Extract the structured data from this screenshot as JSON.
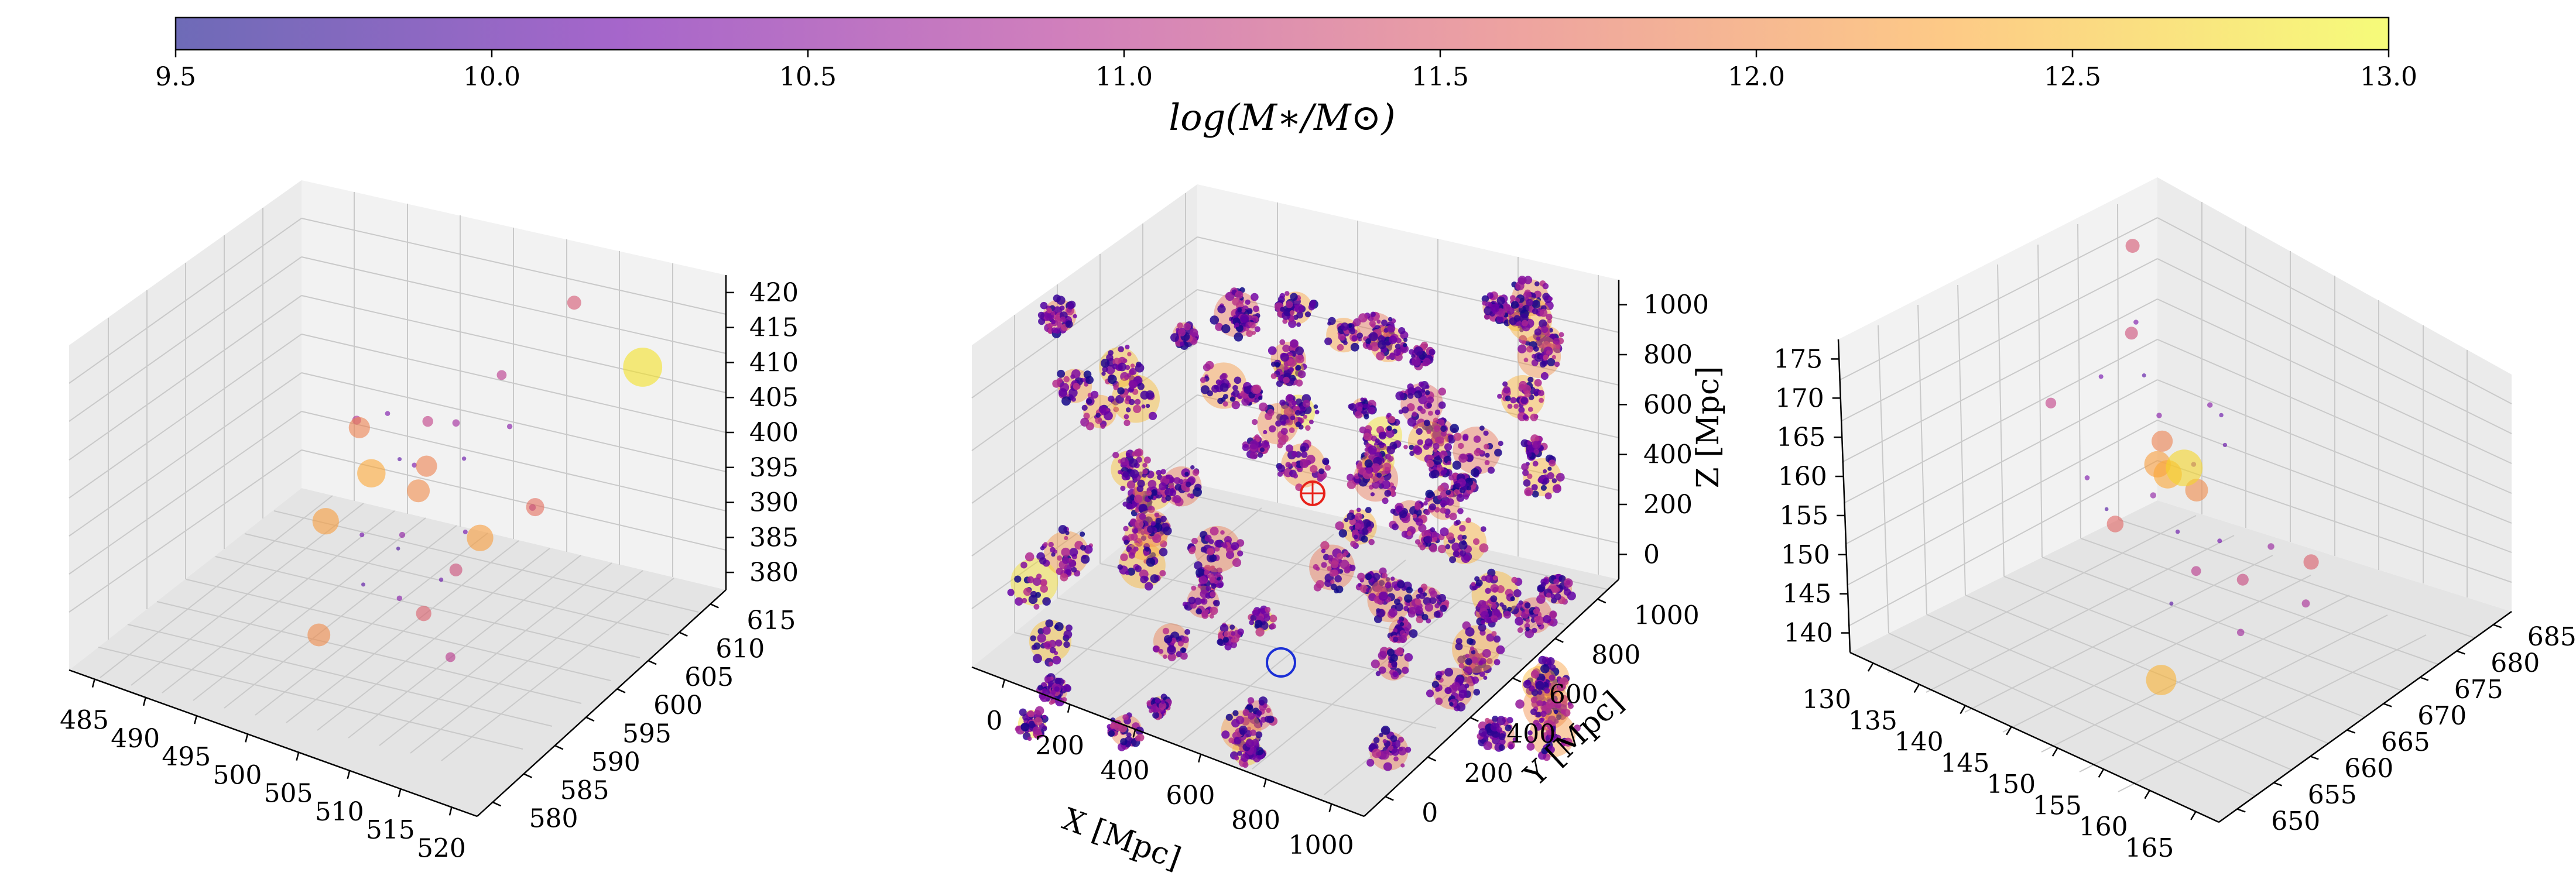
{
  "colorbar": {
    "label": "log(M∗/M⊙)",
    "ticks": [
      "9.5",
      "10.0",
      "10.5",
      "11.0",
      "11.5",
      "12.0",
      "12.5",
      "13.0"
    ],
    "range": [
      9.5,
      13.0
    ],
    "colormap": [
      "#0d0887",
      "#6a00a8",
      "#b12a90",
      "#e16462",
      "#fca636",
      "#f0f921"
    ],
    "alpha": 0.6
  },
  "chart_data": [
    {
      "type": "scatter",
      "name": "left-panel-zoom",
      "title": "",
      "xlabel": "",
      "ylabel": "",
      "zlabel": "",
      "xlim": [
        483,
        521
      ],
      "ylim": [
        580,
        617
      ],
      "zlim": [
        380,
        420
      ],
      "xticks": [
        "485",
        "490",
        "495",
        "500",
        "505",
        "510",
        "515",
        "520"
      ],
      "yticks": [
        "580",
        "585",
        "590",
        "595",
        "600",
        "605",
        "610",
        "615"
      ],
      "zticks": [
        "380",
        "385",
        "390",
        "395",
        "400",
        "405",
        "410",
        "415",
        "420"
      ],
      "points": [
        {
          "x": 498,
          "y": 601,
          "z": 396,
          "m": 12.3
        },
        {
          "x": 503,
          "y": 600,
          "z": 397,
          "m": 12.0
        },
        {
          "x": 510,
          "y": 598,
          "z": 396,
          "m": 12.2
        },
        {
          "x": 500,
          "y": 606,
          "z": 394,
          "m": 11.9
        },
        {
          "x": 495,
          "y": 599,
          "z": 390,
          "m": 12.2
        },
        {
          "x": 495,
          "y": 604,
          "z": 398,
          "m": 11.9
        },
        {
          "x": 517,
          "y": 611,
          "z": 411,
          "m": 12.8
        },
        {
          "x": 510,
          "y": 612,
          "z": 415,
          "m": 11.4
        },
        {
          "x": 500,
          "y": 590,
          "z": 385,
          "m": 12.0
        },
        {
          "x": 512,
          "y": 603,
          "z": 397,
          "m": 11.7
        },
        {
          "x": 506,
          "y": 596,
          "z": 386,
          "m": 11.5
        },
        {
          "x": 509,
          "y": 596,
          "z": 393,
          "m": 11.3
        },
        {
          "x": 502,
          "y": 603,
          "z": 403,
          "m": 11.1
        },
        {
          "x": 507,
          "y": 606,
          "z": 409,
          "m": 11.0
        },
        {
          "x": 511,
          "y": 592,
          "z": 386,
          "m": 11.0
        },
        {
          "x": 504,
          "y": 596,
          "z": 395,
          "m": 10.5
        },
        {
          "x": 502,
          "y": 601,
          "z": 399,
          "m": 10.3
        },
        {
          "x": 506,
          "y": 602,
          "z": 401,
          "m": 10.1
        },
        {
          "x": 505,
          "y": 594,
          "z": 389,
          "m": 10.4
        },
        {
          "x": 508,
          "y": 599,
          "z": 395,
          "m": 10.2
        },
        {
          "x": 500,
          "y": 602,
          "z": 398,
          "m": 10.0
        },
        {
          "x": 503,
          "y": 597,
          "z": 392,
          "m": 9.9
        },
        {
          "x": 497,
          "y": 605,
          "z": 400,
          "m": 10.3
        },
        {
          "x": 513,
          "y": 601,
          "z": 399,
          "m": 10.6
        },
        {
          "x": 499,
          "y": 598,
          "z": 391,
          "m": 10.2
        },
        {
          "x": 504,
          "y": 604,
          "z": 403,
          "m": 10.7
        },
        {
          "x": 507,
          "y": 597,
          "z": 390,
          "m": 10.1
        },
        {
          "x": 501,
          "y": 595,
          "z": 388,
          "m": 10.0
        },
        {
          "x": 509,
          "y": 604,
          "z": 405,
          "m": 10.4
        },
        {
          "x": 496,
          "y": 602,
          "z": 401,
          "m": 10.9
        }
      ]
    },
    {
      "type": "scatter",
      "name": "center-panel-full-box",
      "title": "",
      "xlabel": "X [Mpc]",
      "ylabel": "Y [Mpc]",
      "zlabel": "Z [Mpc]",
      "xlim": [
        0,
        1050
      ],
      "ylim": [
        0,
        1050
      ],
      "zlim": [
        -50,
        1050
      ],
      "xticks": [
        "0",
        "200",
        "400",
        "600",
        "800",
        "1000"
      ],
      "yticks": [
        "0",
        "200",
        "400",
        "600",
        "800",
        "1000"
      ],
      "zticks": [
        "0",
        "200",
        "400",
        "600",
        "800",
        "1000"
      ],
      "halo_groups": 90,
      "markers": [
        {
          "name": "red-circled-halo",
          "x": 500,
          "y": 520,
          "z": 520,
          "color": "#e8221a"
        },
        {
          "name": "blue-circled-halo",
          "x": 640,
          "y": 180,
          "z": 460,
          "color": "#1b2fd6"
        }
      ]
    },
    {
      "type": "scatter",
      "name": "right-panel-zoom",
      "title": "",
      "xlabel": "",
      "ylabel": "",
      "zlabel": "",
      "xlim": [
        128,
        166
      ],
      "ylim": [
        648,
        688
      ],
      "zlim": [
        137,
        176
      ],
      "xticks": [
        "130",
        "135",
        "140",
        "145",
        "150",
        "155",
        "160",
        "165"
      ],
      "yticks": [
        "650",
        "655",
        "660",
        "665",
        "670",
        "675",
        "680",
        "685"
      ],
      "zticks": [
        "140",
        "145",
        "150",
        "155",
        "160",
        "165",
        "170",
        "175"
      ],
      "points": [
        {
          "x": 148,
          "y": 668,
          "z": 158,
          "m": 12.7
        },
        {
          "x": 146,
          "y": 667,
          "z": 158,
          "m": 12.2
        },
        {
          "x": 145,
          "y": 669,
          "z": 159,
          "m": 11.9
        },
        {
          "x": 150,
          "y": 667,
          "z": 157,
          "m": 12.0
        },
        {
          "x": 155,
          "y": 655,
          "z": 144,
          "m": 12.4
        },
        {
          "x": 136,
          "y": 681,
          "z": 142,
          "m": 12.3
        },
        {
          "x": 150,
          "y": 656,
          "z": 160,
          "m": 11.6
        },
        {
          "x": 134,
          "y": 680,
          "z": 170,
          "m": 11.4
        },
        {
          "x": 157,
          "y": 673,
          "z": 148,
          "m": 11.5
        },
        {
          "x": 143,
          "y": 668,
          "z": 172,
          "m": 11.3
        },
        {
          "x": 160,
          "y": 660,
          "z": 156,
          "m": 11.2
        },
        {
          "x": 139,
          "y": 662,
          "z": 165,
          "m": 11.1
        },
        {
          "x": 152,
          "y": 664,
          "z": 150,
          "m": 11.0
        },
        {
          "x": 147,
          "y": 665,
          "z": 156,
          "m": 10.5
        },
        {
          "x": 149,
          "y": 668,
          "z": 159,
          "m": 10.3
        },
        {
          "x": 151,
          "y": 663,
          "z": 155,
          "m": 10.1
        },
        {
          "x": 144,
          "y": 670,
          "z": 161,
          "m": 10.4
        },
        {
          "x": 153,
          "y": 666,
          "z": 153,
          "m": 10.2
        },
        {
          "x": 141,
          "y": 672,
          "z": 163,
          "m": 10.0
        },
        {
          "x": 146,
          "y": 660,
          "z": 157,
          "m": 9.9
        },
        {
          "x": 156,
          "y": 669,
          "z": 152,
          "m": 10.6
        },
        {
          "x": 138,
          "y": 675,
          "z": 166,
          "m": 10.3
        },
        {
          "x": 150,
          "y": 671,
          "z": 160,
          "m": 10.1
        },
        {
          "x": 158,
          "y": 662,
          "z": 147,
          "m": 10.7
        },
        {
          "x": 142,
          "y": 665,
          "z": 168,
          "m": 10.2
        },
        {
          "x": 154,
          "y": 658,
          "z": 151,
          "m": 10.0
        },
        {
          "x": 147,
          "y": 673,
          "z": 162,
          "m": 10.4
        },
        {
          "x": 161,
          "y": 667,
          "z": 149,
          "m": 10.8
        },
        {
          "x": 137,
          "y": 669,
          "z": 150,
          "m": 10.3
        },
        {
          "x": 145,
          "y": 677,
          "z": 157,
          "m": 10.1
        }
      ]
    }
  ]
}
